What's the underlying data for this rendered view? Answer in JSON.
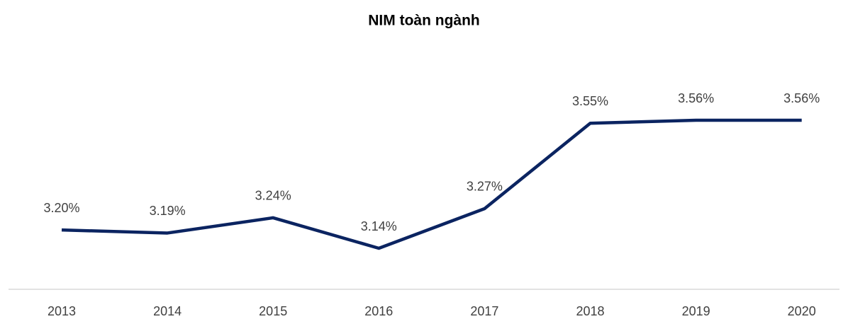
{
  "chart_data": {
    "type": "line",
    "title": "NIM toàn ngành",
    "categories": [
      "2013",
      "2014",
      "2015",
      "2016",
      "2017",
      "2018",
      "2019",
      "2020"
    ],
    "series": [
      {
        "name": "NIM",
        "color": "#0b2461",
        "values": [
          3.2,
          3.19,
          3.24,
          3.14,
          3.27,
          3.55,
          3.56,
          3.56
        ],
        "value_labels": [
          "3.20%",
          "3.19%",
          "3.24%",
          "3.14%",
          "3.27%",
          "3.55%",
          "3.56%",
          "3.56%"
        ]
      }
    ]
  }
}
